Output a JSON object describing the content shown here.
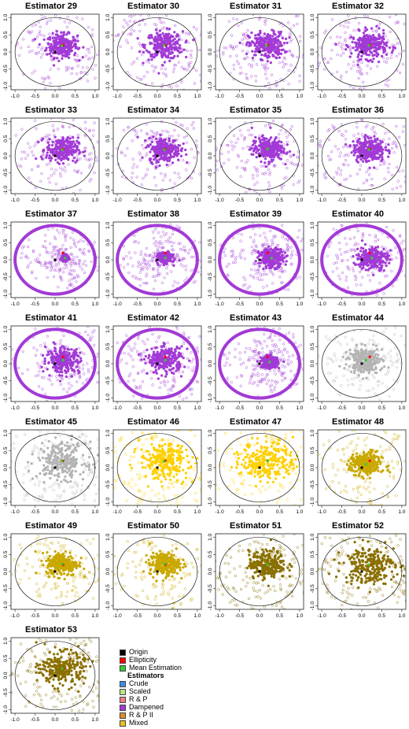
{
  "chart_data": {
    "type": "scatter",
    "x_ticks": [
      "-1.0",
      "-0.5",
      "0.0",
      "0.5",
      "1.0"
    ],
    "y_ticks": [
      "-1.0",
      "-0.5",
      "0.0",
      "0.5",
      "1.0"
    ],
    "xlim": [
      -1.1,
      1.1
    ],
    "ylim": [
      -1.1,
      1.1
    ],
    "origin": [
      0,
      0
    ],
    "ellipticity": [
      0.2,
      0.2
    ],
    "panels": [
      {
        "title": "Estimator 29",
        "palette": "Dampened",
        "spread": 0.35,
        "outliers": 0.18,
        "ring": false,
        "mean": [
          0.17,
          0.18
        ]
      },
      {
        "title": "Estimator 30",
        "palette": "Dampened",
        "spread": 0.42,
        "outliers": 0.22,
        "ring": false,
        "mean": [
          0.17,
          0.19
        ]
      },
      {
        "title": "Estimator 31",
        "palette": "Dampened",
        "spread": 0.4,
        "outliers": 0.22,
        "ring": false,
        "mean": [
          0.17,
          0.19
        ]
      },
      {
        "title": "Estimator 32",
        "palette": "Dampened",
        "spread": 0.4,
        "outliers": 0.22,
        "ring": false,
        "mean": [
          0.18,
          0.19
        ]
      },
      {
        "title": "Estimator 33",
        "palette": "Dampened",
        "spread": 0.36,
        "outliers": 0.2,
        "ring": false,
        "mean": [
          0.18,
          0.18
        ]
      },
      {
        "title": "Estimator 34",
        "palette": "Dampened",
        "spread": 0.36,
        "outliers": 0.2,
        "ring": false,
        "mean": [
          0.18,
          0.18
        ]
      },
      {
        "title": "Estimator 35",
        "palette": "Dampened",
        "spread": 0.36,
        "outliers": 0.2,
        "ring": false,
        "mean": [
          0.2,
          0.2
        ]
      },
      {
        "title": "Estimator 36",
        "palette": "Dampened",
        "spread": 0.36,
        "outliers": 0.2,
        "ring": false,
        "mean": [
          0.18,
          0.18
        ]
      },
      {
        "title": "Estimator 37",
        "palette": "Dampened",
        "spread": 0.08,
        "outliers": 0.3,
        "ring": true,
        "mean": [
          0.25,
          0.05
        ]
      },
      {
        "title": "Estimator 38",
        "palette": "Dampened",
        "spread": 0.15,
        "outliers": 0.3,
        "ring": true,
        "mean": [
          0.2,
          0.05
        ]
      },
      {
        "title": "Estimator 39",
        "palette": "Dampened",
        "spread": 0.28,
        "outliers": 0.28,
        "ring": true,
        "mean": [
          0.3,
          0.05
        ]
      },
      {
        "title": "Estimator 40",
        "palette": "Dampened",
        "spread": 0.35,
        "outliers": 0.22,
        "ring": true,
        "mean": [
          0.25,
          0.05
        ]
      },
      {
        "title": "Estimator 41",
        "palette": "Dampened",
        "spread": 0.38,
        "outliers": 0.2,
        "ring": true,
        "mean": [
          0.2,
          0.1
        ]
      },
      {
        "title": "Estimator 42",
        "palette": "Dampened",
        "spread": 0.4,
        "outliers": 0.2,
        "ring": true,
        "mean": [
          0.2,
          0.1
        ]
      },
      {
        "title": "Estimator 43",
        "palette": "Dampened",
        "spread": 0.18,
        "outliers": 0.3,
        "ring": true,
        "mean": [
          0.25,
          0.05
        ]
      },
      {
        "title": "Estimator 44",
        "palette": "Mixed-grey",
        "spread": 0.38,
        "outliers": 0.2,
        "ring": false,
        "mean": [
          0.1,
          0.1
        ]
      },
      {
        "title": "Estimator 45",
        "palette": "Mixed-grey",
        "spread": 0.55,
        "outliers": 0.25,
        "ring": false,
        "mean": [
          0.17,
          0.2
        ]
      },
      {
        "title": "Estimator 46",
        "palette": "Mixed-yellow",
        "spread": 0.55,
        "outliers": 0.25,
        "ring": false,
        "mean": [
          0.17,
          0.18
        ]
      },
      {
        "title": "Estimator 47",
        "palette": "Mixed-yellow",
        "spread": 0.6,
        "outliers": 0.2,
        "ring": false,
        "mean": [
          0.2,
          0.2
        ]
      },
      {
        "title": "Estimator 48",
        "palette": "Mixed-olive",
        "spread": 0.36,
        "outliers": 0.18,
        "ring": false,
        "mean": [
          0.1,
          0.1
        ]
      },
      {
        "title": "Estimator 49",
        "palette": "Mixed-olive",
        "spread": 0.36,
        "outliers": 0.18,
        "ring": false,
        "mean": [
          0.18,
          0.22
        ]
      },
      {
        "title": "Estimator 50",
        "palette": "Mixed-olive",
        "spread": 0.34,
        "outliers": 0.18,
        "ring": false,
        "mean": [
          0.18,
          0.22
        ]
      },
      {
        "title": "Estimator 51",
        "palette": "Mixed-darkolive",
        "spread": 0.42,
        "outliers": 0.22,
        "ring": false,
        "mean": [
          0.2,
          0.2
        ]
      },
      {
        "title": "Estimator 52",
        "palette": "Mixed-darkolive",
        "spread": 0.58,
        "outliers": 0.25,
        "ring": false,
        "mean": [
          0.18,
          0.2
        ]
      },
      {
        "title": "Estimator 53",
        "palette": "Mixed-darkolive",
        "spread": 0.5,
        "outliers": 0.22,
        "ring": false,
        "mean": [
          0.18,
          0.2
        ]
      }
    ],
    "legend": [
      {
        "label": "Origin",
        "color": "#000000",
        "bold": false
      },
      {
        "label": "Ellipticity",
        "color": "#ff0000",
        "bold": false
      },
      {
        "label": "Mean Estimation",
        "color": "#33cc33",
        "bold": false
      },
      {
        "label": "Estimators",
        "color": "",
        "bold": true
      },
      {
        "label": "Crude",
        "color": "#3a8ee6",
        "bold": false
      },
      {
        "label": "Scaled",
        "color": "#b8e68a",
        "bold": false
      },
      {
        "label": "R & P",
        "color": "#f08080",
        "bold": false
      },
      {
        "label": "Dampened",
        "color": "#a23ad6",
        "bold": false
      },
      {
        "label": "R & P II",
        "color": "#e08a2a",
        "bold": false
      },
      {
        "label": "Mixed",
        "color": "#e8c020",
        "bold": false
      }
    ]
  },
  "colors": {
    "Dampened": "#a23ad6",
    "Mixed-grey": "#b4b4b4",
    "Mixed-yellow": "#ffd000",
    "Mixed-olive": "#c9a800",
    "Mixed-darkolive": "#8a7000",
    "origin": "#000000",
    "ellipticity": "#ff0000",
    "mean": "#33cc33"
  }
}
